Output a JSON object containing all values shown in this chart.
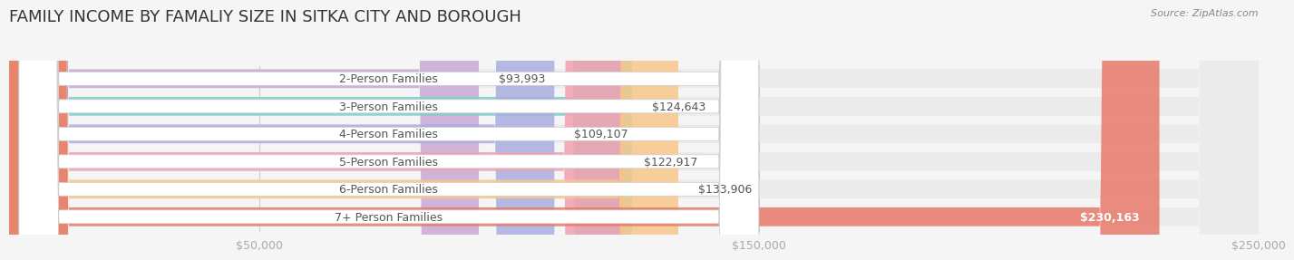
{
  "title": "FAMILY INCOME BY FAMALIY SIZE IN SITKA CITY AND BOROUGH",
  "source": "Source: ZipAtlas.com",
  "categories": [
    "2-Person Families",
    "3-Person Families",
    "4-Person Families",
    "5-Person Families",
    "6-Person Families",
    "7+ Person Families"
  ],
  "values": [
    93993,
    124643,
    109107,
    122917,
    133906,
    230163
  ],
  "bar_colors": [
    "#c9a8d4",
    "#7ecfca",
    "#a9aee0",
    "#f4a0b0",
    "#f8c88a",
    "#e8796a"
  ],
  "background_color": "#f5f5f5",
  "bar_bg_color": "#e8e8e8",
  "xlim": [
    0,
    250000
  ],
  "xticks": [
    0,
    50000,
    150000,
    250000
  ],
  "xtick_labels": [
    "",
    "$50,000",
    "$150,000",
    "$250,000"
  ],
  "title_fontsize": 13,
  "label_fontsize": 9,
  "value_fontsize": 9
}
